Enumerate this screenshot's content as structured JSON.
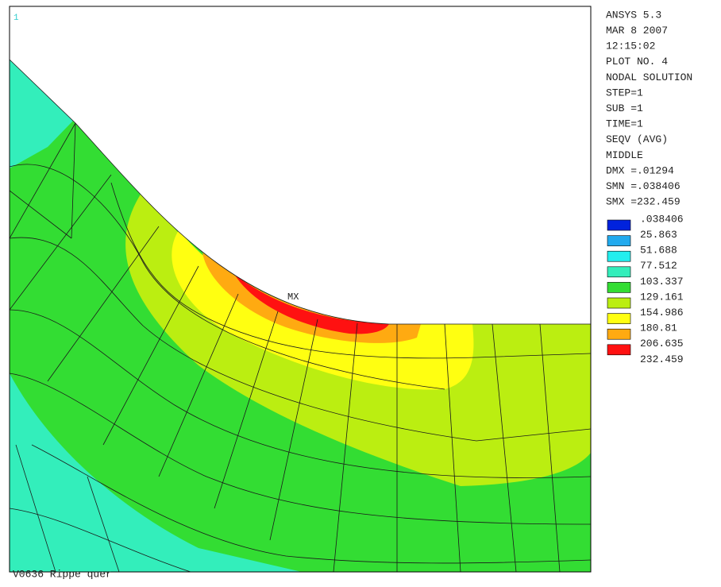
{
  "plot": {
    "window_number": "1",
    "marker": "MX",
    "caption": "V0636 Rippe quer"
  },
  "header": [
    "ANSYS 5.3",
    "MAR  8 2007",
    "12:15:02",
    "PLOT NO.   4",
    "NODAL SOLUTION",
    "STEP=1",
    "SUB =1",
    "TIME=1",
    "SEQV     (AVG)",
    "MIDDLE",
    "DMX =.01294",
    "SMN =.038406",
    "SMX =232.459"
  ],
  "legend": {
    "labels": [
      ".038406",
      "25.863",
      "51.688",
      "77.512",
      "103.337",
      "129.161",
      "154.986",
      "180.81",
      "206.635",
      "232.459"
    ],
    "colors": [
      "#0022dd",
      "#22aaee",
      "#22eeee",
      "#33eebb",
      "#33dd33",
      "#bbee11",
      "#ffff11",
      "#ffaa11",
      "#ff1111"
    ]
  }
}
